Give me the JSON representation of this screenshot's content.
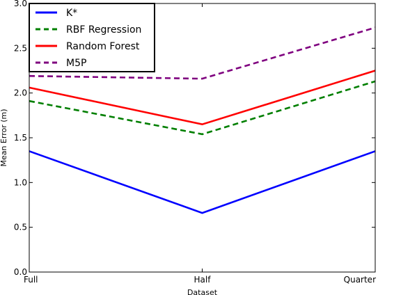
{
  "chart_data": {
    "type": "line",
    "title": "",
    "xlabel": "Dataset",
    "ylabel": "Mean Error (m)",
    "categories": [
      "Full",
      "Half",
      "Quarter"
    ],
    "ylim": [
      0.0,
      3.0
    ],
    "yticks": [
      "0.0",
      "0.5",
      "1.0",
      "1.5",
      "2.0",
      "2.5",
      "3.0"
    ],
    "grid": false,
    "legend_position": "top-left",
    "series": [
      {
        "name": "K*",
        "values": [
          1.35,
          0.66,
          1.35
        ],
        "color": "#0000ff",
        "style": "solid"
      },
      {
        "name": "RBF Regression",
        "values": [
          1.91,
          1.54,
          2.13
        ],
        "color": "#007f00",
        "style": "dashed"
      },
      {
        "name": "Random Forest",
        "values": [
          2.06,
          1.65,
          2.25
        ],
        "color": "#ff0000",
        "style": "solid"
      },
      {
        "name": "M5P",
        "values": [
          2.19,
          2.16,
          2.73
        ],
        "color": "#7f007f",
        "style": "dashed"
      }
    ]
  }
}
